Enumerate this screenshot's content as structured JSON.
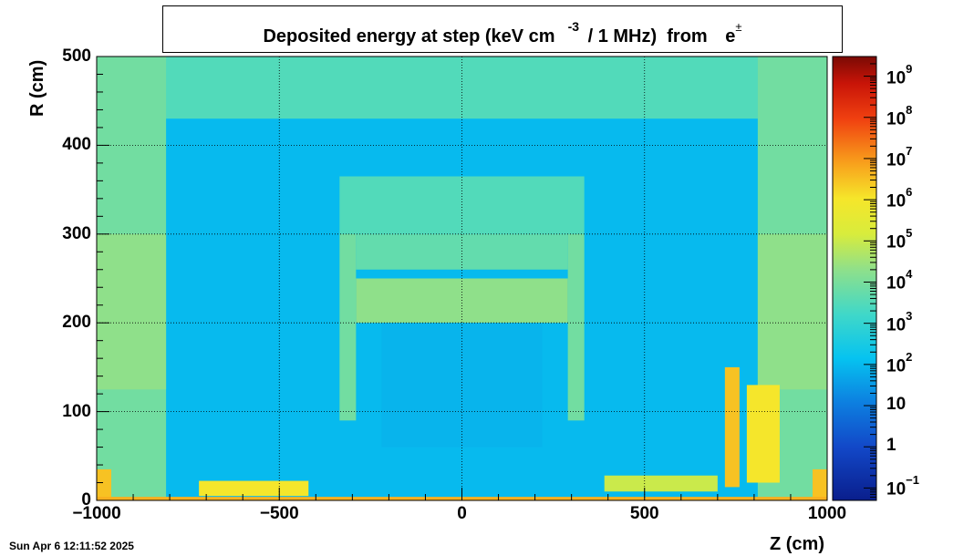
{
  "chart_data": {
    "type": "heatmap",
    "title": "Deposited energy at step (keV cm",
    "title_exponent": "-3",
    "title_rest": " / 1 MHz)  from ",
    "title_particle": "e",
    "title_particle_sup": "±",
    "xlabel": "Z (cm)",
    "ylabel": "R (cm)",
    "xlim": [
      -1000,
      1000
    ],
    "ylim": [
      0,
      500
    ],
    "x_ticks": [
      -1000,
      -500,
      0,
      500,
      1000
    ],
    "x_tick_labels": [
      "−1000",
      "−500",
      "0",
      "500",
      "1000"
    ],
    "y_ticks": [
      0,
      100,
      200,
      300,
      400,
      500
    ],
    "y_tick_labels": [
      "0",
      "100",
      "200",
      "300",
      "400",
      "500"
    ],
    "grid": true,
    "colorbar": {
      "scale": "log",
      "zlim": [
        0.05,
        3000000000
      ],
      "labels": [
        {
          "value": 0.1,
          "base": "10",
          "exp": "−1"
        },
        {
          "value": 1,
          "base": "1",
          "exp": ""
        },
        {
          "value": 10,
          "base": "10",
          "exp": ""
        },
        {
          "value": 100,
          "base": "10",
          "exp": "2"
        },
        {
          "value": 1000,
          "base": "10",
          "exp": "3"
        },
        {
          "value": 10000,
          "base": "10",
          "exp": "4"
        },
        {
          "value": 100000,
          "base": "10",
          "exp": "5"
        },
        {
          "value": 1000000,
          "base": "10",
          "exp": "6"
        },
        {
          "value": 10000000,
          "base": "10",
          "exp": "7"
        },
        {
          "value": 100000000,
          "base": "10",
          "exp": "8"
        },
        {
          "value": 1000000000,
          "base": "10",
          "exp": "9"
        }
      ]
    },
    "background_level": 100,
    "regions": [
      {
        "z": [
          -1000,
          1000
        ],
        "r": [
          430,
          500
        ],
        "value": 3000
      },
      {
        "z": [
          -1000,
          -810
        ],
        "r": [
          0,
          500
        ],
        "value": 8000
      },
      {
        "z": [
          810,
          1000
        ],
        "r": [
          0,
          500
        ],
        "value": 8000
      },
      {
        "z": [
          -1000,
          -810
        ],
        "r": [
          125,
          300
        ],
        "value": 20000
      },
      {
        "z": [
          810,
          1000
        ],
        "r": [
          125,
          300
        ],
        "value": 20000
      },
      {
        "z": [
          -335,
          335
        ],
        "r": [
          300,
          365
        ],
        "value": 3000
      },
      {
        "z": [
          -290,
          290
        ],
        "r": [
          260,
          300
        ],
        "value": 5000
      },
      {
        "z": [
          -290,
          290
        ],
        "r": [
          200,
          250
        ],
        "value": 20000
      },
      {
        "z": [
          -335,
          -290
        ],
        "r": [
          90,
          300
        ],
        "value": 8000
      },
      {
        "z": [
          290,
          335
        ],
        "r": [
          90,
          300
        ],
        "value": 8000
      },
      {
        "z": [
          -220,
          220
        ],
        "r": [
          60,
          200
        ],
        "value": 80
      },
      {
        "z": [
          -1000,
          -960
        ],
        "r": [
          0,
          35
        ],
        "value": 3000000
      },
      {
        "z": [
          960,
          1000
        ],
        "r": [
          0,
          35
        ],
        "value": 3000000
      },
      {
        "z": [
          -720,
          -420
        ],
        "r": [
          5,
          22
        ],
        "value": 1000000
      },
      {
        "z": [
          390,
          700
        ],
        "r": [
          10,
          28
        ],
        "value": 100000
      },
      {
        "z": [
          720,
          760
        ],
        "r": [
          15,
          150
        ],
        "value": 3000000
      },
      {
        "z": [
          780,
          870
        ],
        "r": [
          20,
          130
        ],
        "value": 1000000
      },
      {
        "z": [
          -1000,
          1000
        ],
        "r": [
          0,
          4
        ],
        "value": 5000000
      }
    ]
  },
  "datestamp": "Sun Apr  6 12:11:52 2025"
}
